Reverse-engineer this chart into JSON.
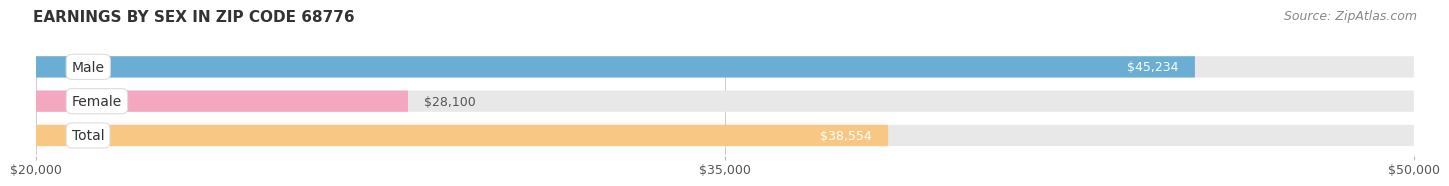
{
  "title": "EARNINGS BY SEX IN ZIP CODE 68776",
  "source": "Source: ZipAtlas.com",
  "categories": [
    "Male",
    "Female",
    "Total"
  ],
  "values": [
    45234,
    28100,
    38554
  ],
  "bar_colors": [
    "#6aaed6",
    "#f4a8c0",
    "#f9c784"
  ],
  "bar_bg_color": "#e8e8e8",
  "xmin": 20000,
  "xmax": 50000,
  "xticks": [
    20000,
    35000,
    50000
  ],
  "xtick_labels": [
    "$20,000",
    "$35,000",
    "$50,000"
  ],
  "value_labels": [
    "$45,234",
    "$28,100",
    "$38,554"
  ],
  "title_fontsize": 11,
  "source_fontsize": 9,
  "tick_fontsize": 9,
  "bar_label_fontsize": 9,
  "cat_label_fontsize": 10,
  "background_color": "#ffffff",
  "bar_height": 0.62
}
